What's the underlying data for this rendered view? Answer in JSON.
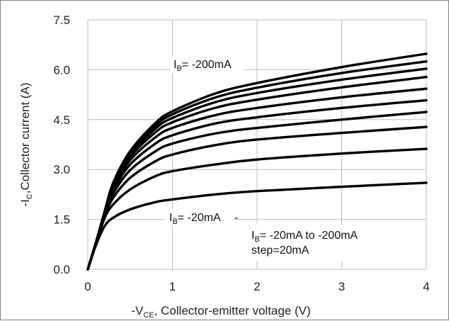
{
  "chart_data": {
    "type": "line",
    "xlim": [
      0,
      4
    ],
    "ylim": [
      0,
      7.5
    ],
    "x_ticks": [
      "0",
      "1",
      "2",
      "3",
      "4"
    ],
    "y_ticks": [
      "0.0",
      "1.5",
      "3.0",
      "4.5",
      "6.0",
      "7.5"
    ],
    "grid": true,
    "xlabel": {
      "prefix": "-V",
      "sub": "CE",
      "suffix": ", Collector-emitter voltage  (V)"
    },
    "ylabel": {
      "prefix": "-I",
      "sub": "C",
      "suffix": ",Collector current (A)"
    },
    "annotations": {
      "top": {
        "prefix": "I",
        "sub": "B",
        "suffix": "= -200mA"
      },
      "bottom": {
        "prefix": "I",
        "sub": "B",
        "suffix": "= -20mA"
      },
      "range": {
        "prefix": "I",
        "sub": "B",
        "suffix": "= -20mA to -200mA"
      },
      "step": "step=20mA"
    },
    "series": [
      {
        "x": [
          0,
          0.1,
          0.2,
          0.3,
          0.5,
          0.8,
          1.0,
          1.5,
          2.0,
          3.0,
          4.0
        ],
        "y": [
          0,
          0.75,
          1.3,
          1.55,
          1.8,
          2.02,
          2.1,
          2.25,
          2.35,
          2.48,
          2.6
        ]
      },
      {
        "x": [
          0,
          0.1,
          0.2,
          0.3,
          0.5,
          0.8,
          1.0,
          1.5,
          2.0,
          3.0,
          4.0
        ],
        "y": [
          0,
          0.8,
          1.55,
          1.95,
          2.4,
          2.8,
          2.95,
          3.15,
          3.3,
          3.48,
          3.62
        ]
      },
      {
        "x": [
          0,
          0.1,
          0.2,
          0.3,
          0.5,
          0.8,
          1.0,
          1.5,
          2.0,
          3.0,
          4.0
        ],
        "y": [
          0,
          0.8,
          1.6,
          2.15,
          2.75,
          3.25,
          3.45,
          3.73,
          3.9,
          4.1,
          4.28
        ]
      },
      {
        "x": [
          0,
          0.1,
          0.2,
          0.3,
          0.5,
          0.8,
          1.0,
          1.5,
          2.0,
          3.0,
          4.0
        ],
        "y": [
          0,
          0.82,
          1.65,
          2.28,
          2.98,
          3.55,
          3.78,
          4.08,
          4.25,
          4.5,
          4.73
        ]
      },
      {
        "x": [
          0,
          0.1,
          0.2,
          0.3,
          0.5,
          0.8,
          1.0,
          1.5,
          2.0,
          3.0,
          4.0
        ],
        "y": [
          0,
          0.82,
          1.68,
          2.38,
          3.15,
          3.78,
          4.03,
          4.38,
          4.57,
          4.85,
          5.08
        ]
      },
      {
        "x": [
          0,
          0.1,
          0.2,
          0.3,
          0.5,
          0.8,
          1.0,
          1.5,
          2.0,
          3.0,
          4.0
        ],
        "y": [
          0,
          0.83,
          1.7,
          2.45,
          3.28,
          3.97,
          4.25,
          4.63,
          4.85,
          5.17,
          5.43
        ]
      },
      {
        "x": [
          0,
          0.1,
          0.2,
          0.3,
          0.5,
          0.8,
          1.0,
          1.5,
          2.0,
          3.0,
          4.0
        ],
        "y": [
          0,
          0.83,
          1.72,
          2.5,
          3.38,
          4.12,
          4.42,
          4.85,
          5.1,
          5.47,
          5.78
        ]
      },
      {
        "x": [
          0,
          0.1,
          0.2,
          0.3,
          0.5,
          0.8,
          1.0,
          1.5,
          2.0,
          3.0,
          4.0
        ],
        "y": [
          0,
          0.84,
          1.73,
          2.55,
          3.45,
          4.23,
          4.55,
          5.02,
          5.3,
          5.7,
          6.03
        ]
      },
      {
        "x": [
          0,
          0.1,
          0.2,
          0.3,
          0.5,
          0.8,
          1.0,
          1.5,
          2.0,
          3.0,
          4.0
        ],
        "y": [
          0,
          0.84,
          1.74,
          2.58,
          3.5,
          4.32,
          4.66,
          5.16,
          5.46,
          5.9,
          6.25
        ]
      },
      {
        "x": [
          0,
          0.1,
          0.2,
          0.3,
          0.5,
          0.8,
          1.0,
          1.5,
          2.0,
          3.0,
          4.0
        ],
        "y": [
          0,
          0.84,
          1.75,
          2.6,
          3.55,
          4.4,
          4.75,
          5.28,
          5.6,
          6.08,
          6.48
        ]
      }
    ]
  }
}
